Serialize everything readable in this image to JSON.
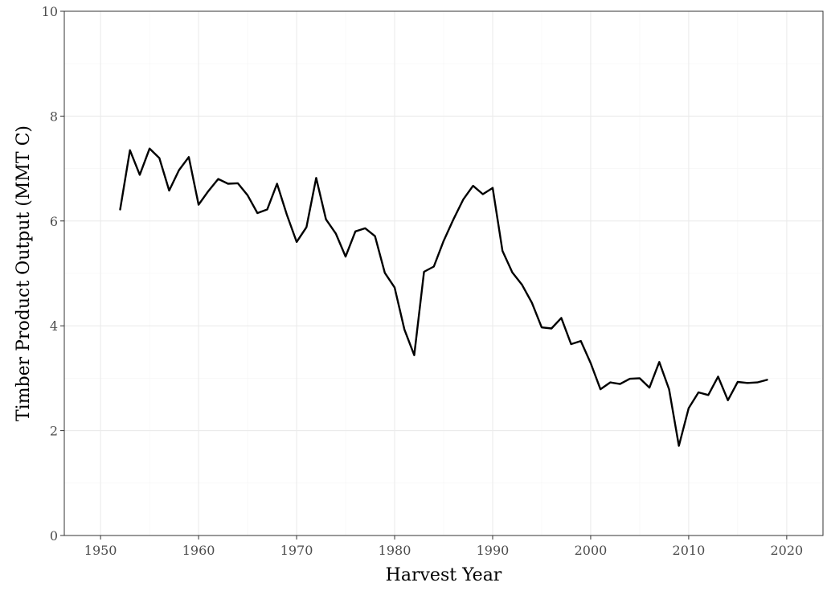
{
  "chart_data": {
    "type": "line",
    "title": "",
    "xlabel": "Harvest Year",
    "ylabel": "Timber Product Output (MMT C)",
    "xlim": [
      1946.3,
      2023.7
    ],
    "ylim": [
      0,
      10
    ],
    "x_ticks": [
      1950,
      1960,
      1970,
      1980,
      1990,
      2000,
      2010,
      2020
    ],
    "y_ticks": [
      0,
      2,
      4,
      6,
      8,
      10
    ],
    "x_tick_labels": [
      "1950",
      "1960",
      "1970",
      "1980",
      "1990",
      "2000",
      "2010",
      "2020"
    ],
    "y_tick_labels": [
      "0",
      "2",
      "4",
      "6",
      "8",
      "10"
    ],
    "grid": true,
    "legend": "none",
    "line_color": "#000000",
    "x": [
      1952,
      1953,
      1954,
      1955,
      1956,
      1957,
      1958,
      1959,
      1960,
      1961,
      1962,
      1963,
      1964,
      1965,
      1966,
      1967,
      1968,
      1969,
      1970,
      1971,
      1972,
      1973,
      1974,
      1975,
      1976,
      1977,
      1978,
      1979,
      1980,
      1981,
      1982,
      1983,
      1984,
      1985,
      1986,
      1987,
      1988,
      1989,
      1990,
      1991,
      1992,
      1993,
      1994,
      1995,
      1996,
      1997,
      1998,
      1999,
      2000,
      2001,
      2002,
      2003,
      2004,
      2005,
      2006,
      2007,
      2008,
      2009,
      2010,
      2011,
      2012,
      2013,
      2014,
      2015,
      2016,
      2017,
      2018
    ],
    "y": [
      6.22,
      7.35,
      6.88,
      7.38,
      7.2,
      6.58,
      6.97,
      7.22,
      6.31,
      6.57,
      6.8,
      6.71,
      6.72,
      6.49,
      6.15,
      6.22,
      6.71,
      6.12,
      5.6,
      5.88,
      6.82,
      6.03,
      5.76,
      5.32,
      5.8,
      5.86,
      5.71,
      5.01,
      4.73,
      3.93,
      3.44,
      5.03,
      5.13,
      5.62,
      6.03,
      6.41,
      6.67,
      6.51,
      6.63,
      5.43,
      5.02,
      4.78,
      4.44,
      3.97,
      3.95,
      4.15,
      3.65,
      3.71,
      3.29,
      2.79,
      2.92,
      2.89,
      2.99,
      3.0,
      2.82,
      3.31,
      2.79,
      1.71,
      2.43,
      2.73,
      2.68,
      3.03,
      2.58,
      2.93,
      2.91,
      2.92,
      2.97
    ]
  }
}
